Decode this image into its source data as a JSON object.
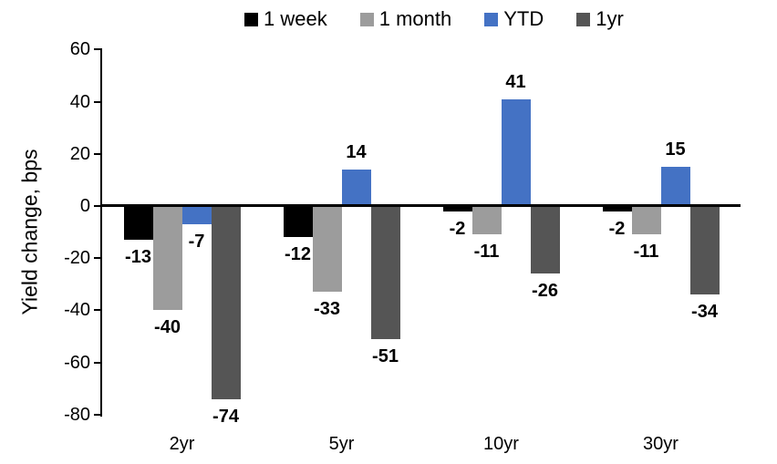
{
  "chart_data": {
    "type": "bar",
    "title": "",
    "xlabel": "",
    "ylabel": "Yield change, bps",
    "categories": [
      "2yr",
      "5yr",
      "10yr",
      "30yr"
    ],
    "series": [
      {
        "name": "1 week",
        "color": "#000000",
        "values": [
          -13,
          -12,
          -2,
          -2
        ]
      },
      {
        "name": "1 month",
        "color": "#9c9c9c",
        "values": [
          -40,
          -33,
          -11,
          -11
        ]
      },
      {
        "name": "YTD",
        "color": "#4472c4",
        "values": [
          -7,
          14,
          41,
          15
        ]
      },
      {
        "name": "1yr",
        "color": "#555555",
        "values": [
          -74,
          -51,
          -26,
          -34
        ]
      }
    ],
    "ylim": [
      -80,
      60
    ],
    "yticks": [
      60,
      40,
      20,
      0,
      -20,
      -40,
      -60,
      -80
    ],
    "data_labels": true,
    "legend_position": "top",
    "grid": false,
    "background": "#ffffff",
    "axis_color": "#000000"
  }
}
